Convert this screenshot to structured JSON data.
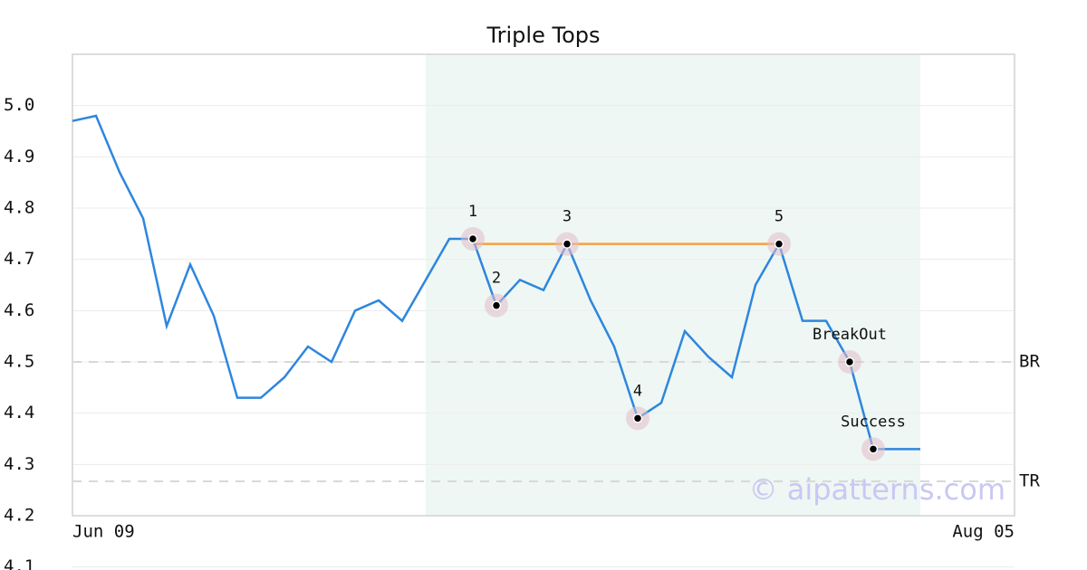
{
  "chart_data": {
    "type": "line",
    "title": "Triple Tops",
    "categories": [
      "Jun 09",
      null,
      null,
      null,
      null,
      null,
      null,
      null,
      null,
      null,
      null,
      null,
      null,
      null,
      null,
      null,
      null,
      null,
      null,
      null,
      null,
      null,
      null,
      null,
      null,
      null,
      null,
      null,
      null,
      null,
      null,
      null,
      null,
      null,
      null,
      null,
      null,
      null,
      null,
      null,
      "Aug 05"
    ],
    "series": [
      {
        "name": null,
        "color": "#2e86de",
        "values": [
          4.97,
          4.98,
          4.87,
          4.78,
          4.57,
          4.69,
          4.59,
          4.43,
          4.43,
          4.47,
          4.53,
          4.5,
          4.6,
          4.62,
          4.58,
          4.66,
          4.74,
          4.74,
          4.61,
          4.66,
          4.64,
          4.73,
          4.62,
          4.53,
          4.39,
          4.42,
          4.56,
          4.51,
          4.47,
          4.65,
          4.73,
          4.58,
          4.58,
          4.5,
          4.33,
          4.33,
          4.33,
          null,
          null,
          null,
          null
        ]
      }
    ],
    "ylim": [
      4.2,
      5.1
    ],
    "yticks": [
      4.2,
      4.3,
      4.4,
      4.5,
      4.6,
      4.7,
      4.8,
      4.9,
      {
        "value": 5,
        "label": "5.0"
      },
      4.1
    ],
    "grid": true,
    "highlight": [
      15,
      36
    ],
    "points": [
      {
        "label": "1",
        "index": 17
      },
      {
        "label": "2",
        "index": 18
      },
      {
        "label": "3",
        "index": 21
      },
      {
        "label": "4",
        "index": 24
      },
      {
        "label": "5",
        "index": 30
      },
      {
        "label": "BreakOut",
        "index": 33
      },
      {
        "label": "Success",
        "index": 34
      }
    ],
    "resistance": {
      "value": 4.73,
      "from": 17,
      "to": 30,
      "color": "#f5a040"
    },
    "hlines": [
      {
        "label": "BR",
        "value": 4.5
      },
      {
        "label": "TR",
        "value": 4.267
      }
    ],
    "watermark": "© aipatterns.com"
  }
}
